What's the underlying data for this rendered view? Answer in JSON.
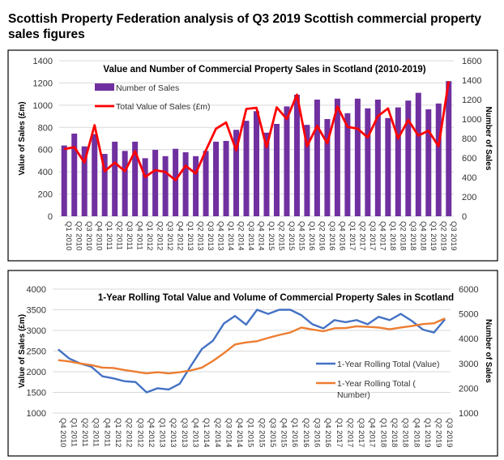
{
  "page_title": "Scottish Property Federation analysis of Q3 2019 Scottish commercial property sales figures",
  "chart_data": [
    {
      "type": "bar+line",
      "title": "Value and Number of Commercial Property Sales in Scotland (2010-2019)",
      "ylabel": "Value of Sales (£m)",
      "y2label": "Number of Sales",
      "ylim": [
        0,
        1400
      ],
      "yticks": [
        0,
        200,
        400,
        600,
        800,
        1000,
        1200,
        1400
      ],
      "y2lim": [
        0,
        1600
      ],
      "y2ticks": [
        0,
        200,
        400,
        600,
        800,
        1000,
        1200,
        1400,
        1600
      ],
      "grid": true,
      "legend": "top-left",
      "categories": [
        "Q1 2010",
        "Q2 2010",
        "Q3 2010",
        "Q4 2010",
        "Q1 2011",
        "Q2 2011",
        "Q3 2011",
        "Q4 2011",
        "Q1 2012",
        "Q2 2012",
        "Q3 2012",
        "Q4 2012",
        "Q1 2013",
        "Q2 2013",
        "Q3 2013",
        "Q4 2013",
        "Q1 2014",
        "Q2 2014",
        "Q3 2014",
        "Q4 2014",
        "Q1 2015",
        "Q2 2015",
        "Q3 2015",
        "Q4 2015",
        "Q1 2016",
        "Q2 2016",
        "Q3 2016",
        "Q4 2016",
        "Q1 2017",
        "Q2 2017",
        "Q3 2017",
        "Q4 2017",
        "Q1 2018",
        "Q2 2018",
        "Q3 2018",
        "Q4 2018",
        "Q1 2019",
        "Q2 2019",
        "Q3 2019"
      ],
      "series": [
        {
          "name": "Number of Sales",
          "type": "bar",
          "axis": "right",
          "color": "#7030a0",
          "values": [
            728,
            850,
            719,
            845,
            641,
            767,
            672,
            767,
            597,
            683,
            618,
            694,
            658,
            618,
            672,
            767,
            775,
            889,
            982,
            1081,
            860,
            950,
            1130,
            1250,
            940,
            1200,
            1000,
            1210,
            1060,
            1210,
            1110,
            1200,
            1010,
            1120,
            1190,
            1270,
            1100,
            1160,
            1390
          ]
        },
        {
          "name": "Total Value of Sales (£m)",
          "type": "line",
          "axis": "left",
          "color": "#ff0000",
          "values": [
            605,
            622,
            483,
            820,
            405,
            483,
            405,
            585,
            354,
            415,
            398,
            324,
            454,
            385,
            593,
            788,
            844,
            593,
            966,
            976,
            620,
            980,
            875,
            1094,
            630,
            814,
            656,
            989,
            805,
            788,
            709,
            901,
            971,
            700,
            866,
            726,
            770,
            630,
            1216
          ]
        }
      ]
    },
    {
      "type": "line",
      "title": "1-Year Rolling Total Value and Volume of Commercial Property Sales in Scotland",
      "ylabel": "Value of Sales (£m)",
      "y2label": "Number of Sales",
      "ylim": [
        1000,
        4000
      ],
      "yticks": [
        1000,
        1500,
        2000,
        2500,
        3000,
        3500,
        4000
      ],
      "y2lim": [
        1000,
        6000
      ],
      "y2ticks": [
        1000,
        2000,
        3000,
        4000,
        5000,
        6000
      ],
      "grid": true,
      "legend": "right",
      "categories": [
        "Q4 2010",
        "Q1 2011",
        "Q2 2011",
        "Q3 2011",
        "Q4 2011",
        "Q1 2012",
        "Q2 2012",
        "Q3 2012",
        "Q4 2012",
        "Q1 2013",
        "Q2 2013",
        "Q3 2013",
        "Q4 2013",
        "Q1 2014",
        "Q2 2014",
        "Q3 2014",
        "Q4 2014",
        "Q1 2015",
        "Q2 2015",
        "Q3 2015",
        "Q4 2015",
        "Q1 2016",
        "Q2 2016",
        "Q3 2016",
        "Q4 2016",
        "Q1 2017",
        "Q2 2017",
        "Q3 2017",
        "Q4 2017",
        "Q1 2018",
        "Q2 2018",
        "Q3 2018",
        "Q4 2018",
        "Q1 2019",
        "Q2 2019",
        "Q3 2019"
      ],
      "series": [
        {
          "name": "1-Year Rolling Total (Value)",
          "axis": "left",
          "color": "#4472c4",
          "values": [
            2540,
            2320,
            2200,
            2120,
            1890,
            1840,
            1770,
            1750,
            1500,
            1600,
            1570,
            1710,
            2140,
            2550,
            2750,
            3170,
            3350,
            3140,
            3500,
            3400,
            3500,
            3500,
            3370,
            3150,
            3050,
            3250,
            3200,
            3250,
            3150,
            3330,
            3250,
            3400,
            3230,
            3020,
            2950,
            3270
          ]
        },
        {
          "name": "1-Year Rolling Total (Number)",
          "axis": "right",
          "color": "#ed7d31",
          "values": [
            3133,
            3083,
            3000,
            2933,
            2833,
            2817,
            2733,
            2667,
            2600,
            2650,
            2600,
            2650,
            2717,
            2833,
            3100,
            3417,
            3767,
            3850,
            3900,
            4030,
            4150,
            4250,
            4450,
            4370,
            4300,
            4420,
            4430,
            4500,
            4480,
            4450,
            4380,
            4450,
            4510,
            4590,
            4620,
            4820
          ]
        }
      ]
    }
  ]
}
